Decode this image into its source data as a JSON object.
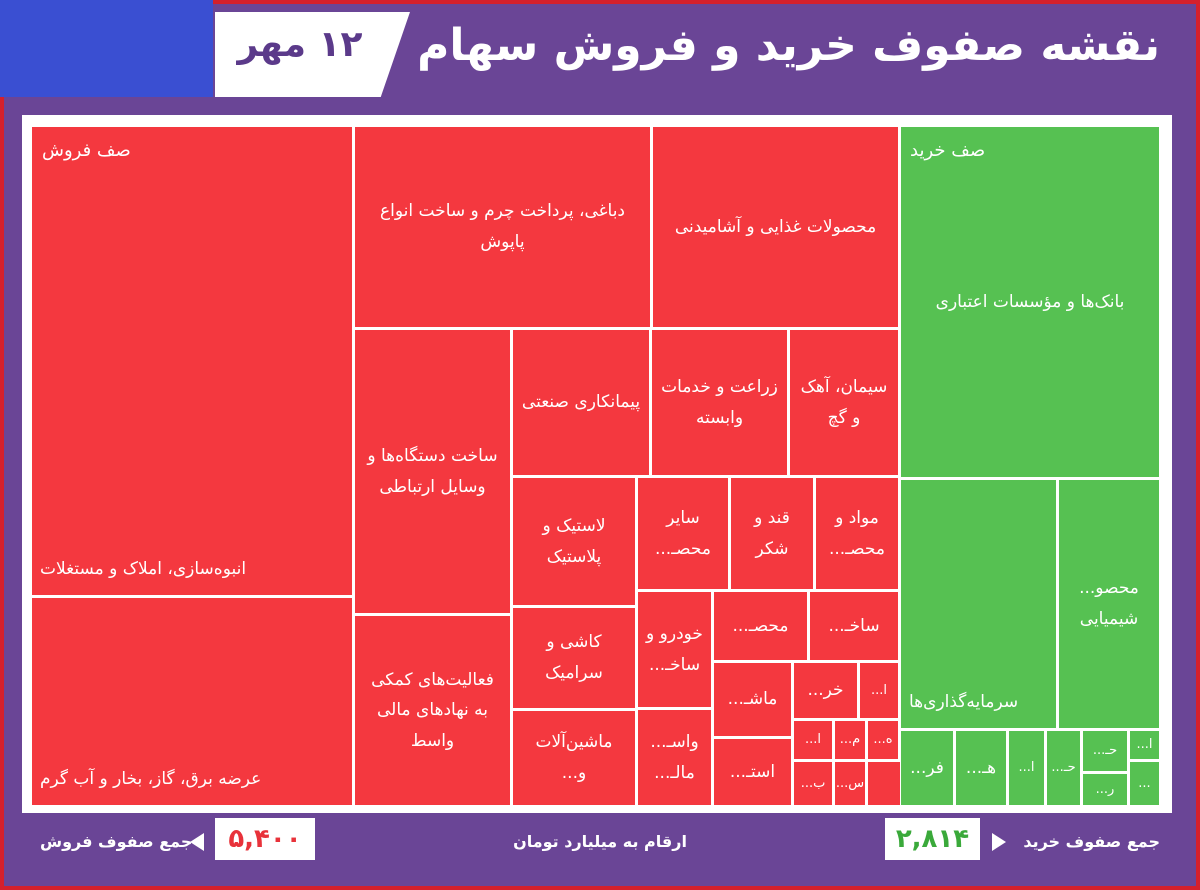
{
  "header": {
    "title": "نقشه صفوف خرید و فروش سهام",
    "date": "۱۲ مهر"
  },
  "sell": {
    "heading": "صف فروش",
    "cells": [
      "انبوه‌سازی، املاک و مستغلات",
      "عرضه برق، گاز، بخار و آب گرم",
      "دباغی، پرداخت چرم و ساخت انواع پاپوش",
      "محصولات غذایی و آشامیدنی",
      "ساخت دستگاه‌ها و وسایل ارتباطی",
      "فعالیت‌های کمکی به نهادهای مالی واسط",
      "پیمانکاری صنعتی",
      "زراعت و خدمات وابسته",
      "سیمان، آهک و گچ",
      "لاستیک و پلاستیک",
      "کاشی و سرامیک",
      "ماشین‌آلات و...",
      "سایر محصـ...",
      "قند و شکر",
      "مواد و محصـ...",
      "خودرو و ساخـ...",
      "واسـ... مالـ...",
      "محصـ...",
      "ساخـ...",
      "ماشـ...",
      "استـ...",
      "خر...",
      "ا...",
      "ا...",
      "م...",
      "ه...",
      "ب...",
      "س..."
    ]
  },
  "buy": {
    "heading": "صف خرید",
    "cells": [
      "بانک‌ها و مؤسسات اعتباری",
      "سرمایه‌گذاری‌ها",
      "محصو... شیمیایی",
      "فر...",
      "هـ...",
      "ا...",
      "حـ...",
      "حـ...",
      "ر...",
      "ا...",
      "..."
    ]
  },
  "footer": {
    "sell_label": "جمع صفوف فروش",
    "sell_total": "۵,۴۰۰",
    "unit_note": "ارقام به میلیارد تومان",
    "buy_label": "جمع صفوف خرید",
    "buy_total": "۲,۸۱۴"
  }
}
